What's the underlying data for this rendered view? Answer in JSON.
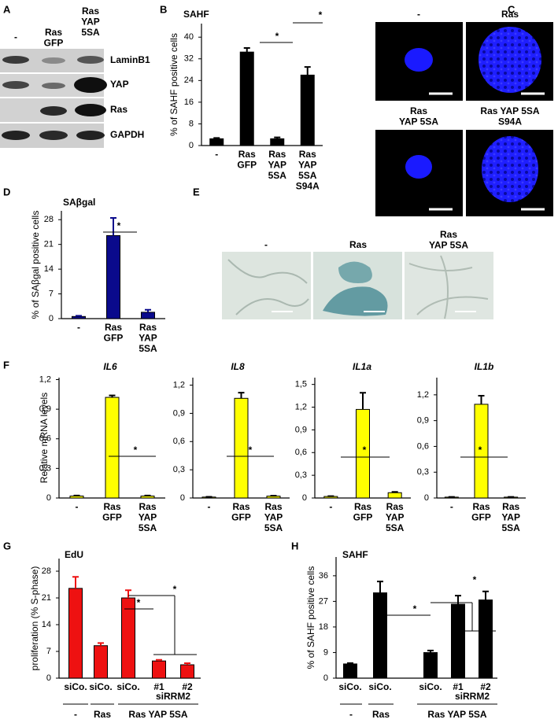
{
  "panel_letters": [
    "A",
    "B",
    "C",
    "D",
    "E",
    "F",
    "G",
    "H"
  ],
  "blot": {
    "lanes": [
      "-",
      "Ras\nGFP",
      "Ras\nYAP\n5SA"
    ],
    "rows": [
      "LaminB1",
      "YAP",
      "Ras",
      "GAPDH"
    ]
  },
  "micrographs_c": {
    "labels": [
      "-",
      "Ras",
      "Ras\nYAP 5SA",
      "Ras YAP 5SA\nS94A"
    ]
  },
  "micrographs_e": {
    "labels": [
      "-",
      "Ras",
      "Ras\nYAP 5SA"
    ]
  },
  "chart_data": [
    {
      "type": "bar",
      "title": "SAHF",
      "y_label": "% of SAHF positive cells",
      "categories": [
        "-",
        "Ras\nGFP",
        "Ras\nYAP\n5SA",
        "Ras\nYAP\n5SA\nS94A"
      ],
      "values": [
        2.5,
        34.5,
        2.5,
        26
      ],
      "errors": [
        0.3,
        1.5,
        0.5,
        3
      ],
      "color": "#000000",
      "ylim": [
        0,
        45
      ],
      "yticks": [
        0,
        8,
        16,
        24,
        32,
        40
      ],
      "annotations": [
        "*",
        "*"
      ]
    },
    {
      "type": "bar",
      "title": "SAβgal",
      "y_label": "% of SAβgal positive cells",
      "categories": [
        "-",
        "Ras\nGFP",
        "Ras\nYAP\n5SA"
      ],
      "values": [
        0.6,
        23.5,
        1.8
      ],
      "errors": [
        0.2,
        5,
        0.7
      ],
      "color": "#0a0a8c",
      "ylim": [
        0,
        30.5
      ],
      "yticks": [
        0,
        7,
        14,
        21,
        28
      ],
      "annotations": [
        "*"
      ]
    },
    {
      "type": "bar",
      "title": "IL6",
      "y_label": "Relative mRNA levels",
      "categories": [
        "-",
        "Ras\nGFP",
        "Ras\nYAP\n5SA"
      ],
      "values": [
        0.02,
        1.02,
        0.02
      ],
      "errors": [
        0.005,
        0.02,
        0.005
      ],
      "color": "#ffff00",
      "ylim": [
        0,
        1.22
      ],
      "yticks": [
        0,
        {
          "value": 0.3,
          "label": "0,3"
        },
        {
          "value": 0.6,
          "label": "0,6"
        },
        {
          "value": 0.9,
          "label": "0,9"
        },
        {
          "value": 1.2,
          "label": "1,2"
        }
      ],
      "annotations": [
        "*"
      ]
    },
    {
      "type": "bar",
      "title": "IL8",
      "categories": [
        "-",
        "Ras\nGFP",
        "Ras\nYAP\n5SA"
      ],
      "values": [
        0.01,
        1.06,
        0.02
      ],
      "errors": [
        0.003,
        0.06,
        0.004
      ],
      "color": "#ffff00",
      "ylim": [
        0,
        1.28
      ],
      "yticks": [
        0,
        {
          "value": 0.3,
          "label": "0,3"
        },
        {
          "value": 0.6,
          "label": "0,6"
        },
        {
          "value": 0.9,
          "label": "0,9"
        },
        {
          "value": 1.2,
          "label": "1,2"
        }
      ],
      "annotations": [
        "*"
      ]
    },
    {
      "type": "bar",
      "title": "IL1a",
      "categories": [
        "-",
        "Ras\nGFP",
        "Ras\nYAP\n5SA"
      ],
      "values": [
        0.02,
        1.17,
        0.07
      ],
      "errors": [
        0.005,
        0.22,
        0.01
      ],
      "color": "#ffff00",
      "ylim": [
        0,
        1.59
      ],
      "yticks": [
        0,
        {
          "value": 0.3,
          "label": "0,3"
        },
        {
          "value": 0.6,
          "label": "0,6"
        },
        {
          "value": 0.9,
          "label": "0,9"
        },
        {
          "value": 1.2,
          "label": "1,2"
        },
        {
          "value": 1.5,
          "label": "1,5"
        }
      ],
      "annotations": [
        "*"
      ]
    },
    {
      "type": "bar",
      "title": "IL1b",
      "categories": [
        "-",
        "Ras\nGFP",
        "Ras\nYAP\n5SA"
      ],
      "values": [
        0.01,
        1.09,
        0.01
      ],
      "errors": [
        0.003,
        0.1,
        0.003
      ],
      "color": "#ffff00",
      "ylim": [
        0,
        1.4
      ],
      "yticks": [
        0,
        {
          "value": 0.3,
          "label": "0,3"
        },
        {
          "value": 0.6,
          "label": "0,6"
        },
        {
          "value": 0.9,
          "label": "0,9"
        },
        {
          "value": 1.2,
          "label": "1,2"
        }
      ],
      "annotations": [
        "*"
      ]
    },
    {
      "type": "bar",
      "title": "EdU",
      "y_label": "proliferation (% S-phase)",
      "categories": [
        "siCo.",
        "siCo.",
        "siCo.",
        "#1",
        "#2"
      ],
      "values": [
        23.5,
        8.5,
        21,
        4.5,
        3.5
      ],
      "errors": [
        3,
        0.7,
        2,
        0.3,
        0.4
      ],
      "color": "#ee1111",
      "ylim": [
        0,
        31.3
      ],
      "yticks": [
        0,
        7,
        14,
        21,
        28
      ],
      "annotations": [
        "*",
        "*"
      ],
      "sub_group": "siRRM2",
      "groups": [
        "-",
        "Ras",
        "Ras YAP 5SA"
      ]
    },
    {
      "type": "bar",
      "title": "SAHF",
      "y_label": "% of SAHF positive cells",
      "categories": [
        "siCo.",
        "siCo.",
        "siCo.",
        "#1",
        "#2"
      ],
      "values": [
        5,
        30,
        9,
        26,
        27.5
      ],
      "errors": [
        0.3,
        4,
        0.7,
        3,
        3
      ],
      "color": "#000000",
      "ylim": [
        0,
        42.6
      ],
      "yticks": [
        0,
        9,
        18,
        27,
        36
      ],
      "annotations": [
        "*",
        "*"
      ],
      "sub_group": "siRRM2",
      "groups": [
        "-",
        "Ras",
        "Ras YAP 5SA"
      ]
    }
  ]
}
